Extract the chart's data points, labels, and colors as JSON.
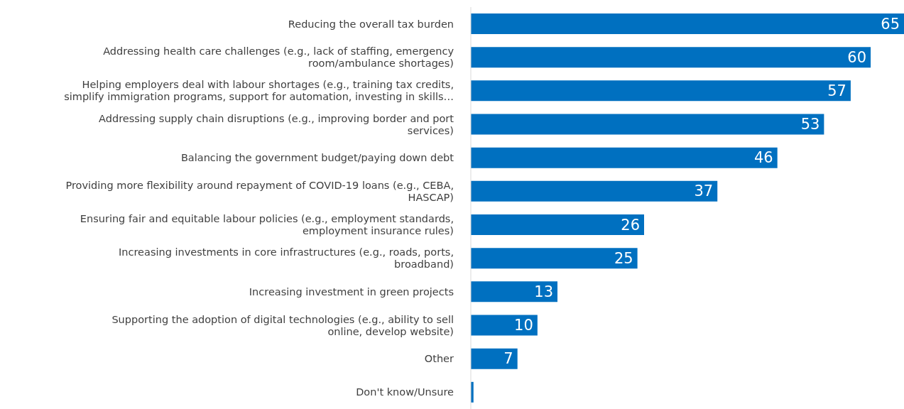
{
  "chart_data": {
    "type": "bar",
    "orientation": "horizontal",
    "categories": [
      "Reducing the overall tax burden",
      "Addressing health care challenges (e.g., lack of staffing, emergency room/ambulance shortages)",
      "Helping employers deal with labour shortages (e.g., training tax credits, simplify immigration programs, support for automation, investing in skills…",
      "Addressing supply chain disruptions (e.g., improving border and port services)",
      "Balancing the government budget/paying down debt",
      "Providing more flexibility around repayment of COVID-19 loans (e.g., CEBA, HASCAP)",
      "Ensuring fair and equitable labour policies (e.g., employment standards, employment insurance rules)",
      "Increasing investments in core infrastructures (e.g., roads, ports, broadband)",
      "Increasing investment in green projects",
      "Supporting the adoption of digital technologies (e.g., ability to sell online, develop website)",
      "Other",
      "Don't know/Unsure"
    ],
    "values": [
      65,
      60,
      57,
      53,
      46,
      37,
      26,
      25,
      13,
      10,
      7,
      0.4
    ],
    "value_labels": [
      "65",
      "60",
      "57",
      "53",
      "46",
      "37",
      "26",
      "25",
      "13",
      "10",
      "7",
      null
    ],
    "color": "#0070c0"
  }
}
